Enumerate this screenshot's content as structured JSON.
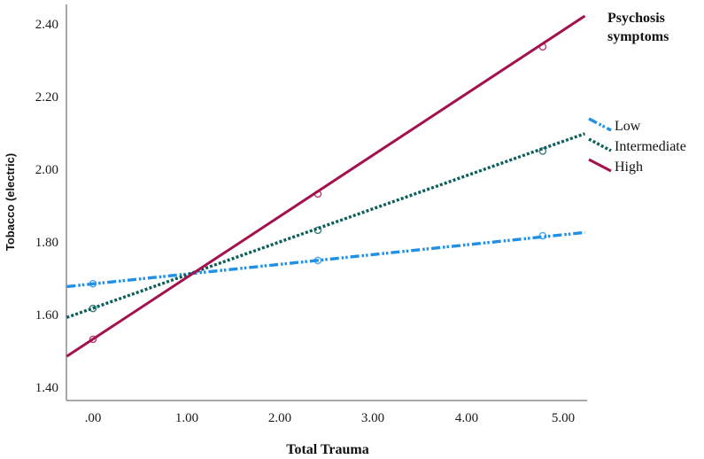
{
  "chart_data": {
    "type": "line",
    "title": "",
    "xlabel": "Total Trauma",
    "ylabel": "Tobacco (electric)",
    "xlim": [
      -0.28,
      5.25
    ],
    "ylim": [
      1.35,
      2.45
    ],
    "x_ticks": [
      ".00",
      "1.00",
      "2.00",
      "3.00",
      "4.00",
      "5.00"
    ],
    "y_ticks": [
      "2.40",
      "2.20",
      "2.00",
      "1.80",
      "1.60",
      "1.40"
    ],
    "grid": false,
    "legend": {
      "title": "Psychosis symptoms",
      "position": "right",
      "entries": [
        "Low",
        "Intermediate",
        "High"
      ]
    },
    "x": [
      0.0,
      2.4,
      4.8
    ],
    "series": [
      {
        "name": "Low",
        "color": "#1e90e8",
        "style": "dash-dot-dot",
        "values": [
          1.685,
          1.749,
          1.817
        ],
        "line_start": [
          -0.28,
          1.677
        ],
        "line_end": [
          5.25,
          1.826
        ]
      },
      {
        "name": "Intermediate",
        "color": "#0b5e5a",
        "style": "dotted",
        "values": [
          1.617,
          1.832,
          2.05
        ],
        "line_start": [
          -0.28,
          1.592
        ],
        "line_end": [
          5.25,
          2.098
        ]
      },
      {
        "name": "High",
        "color": "#a3124f",
        "style": "solid",
        "values": [
          1.532,
          1.932,
          2.337
        ],
        "line_start": [
          -0.28,
          1.485
        ],
        "line_end": [
          5.25,
          2.422
        ]
      }
    ]
  }
}
